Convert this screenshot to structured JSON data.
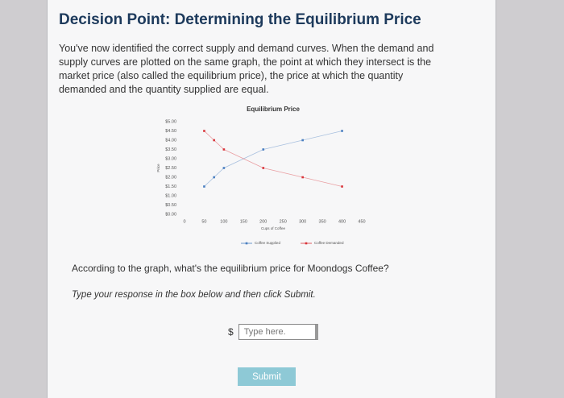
{
  "header": {
    "title": "Decision Point: Determining the Equilibrium Price"
  },
  "intro": "You've now identified the correct supply and demand curves. When the demand and supply curves are plotted on the same graph, the point at which they intersect is the market price (also called the equilibrium price), the price at which the quantity demanded and the quantity supplied are equal.",
  "chart_data": {
    "type": "line",
    "title": "Equilibrium Price",
    "x_label": "Cups of Coffee",
    "y_label": "Price",
    "x": [
      50,
      75,
      100,
      200,
      300,
      400
    ],
    "series": [
      {
        "name": "Coffee Supplied",
        "color": "#4a7fc1",
        "values": [
          1.5,
          2.0,
          2.5,
          3.5,
          4.0,
          4.5
        ]
      },
      {
        "name": "Coffee Demanded",
        "color": "#d9343a",
        "values": [
          4.5,
          4.0,
          3.5,
          2.5,
          2.0,
          1.5
        ]
      }
    ],
    "xlim": [
      0,
      450
    ],
    "xticks": [
      0,
      50,
      100,
      150,
      200,
      250,
      300,
      350,
      400,
      450
    ],
    "ylim": [
      0,
      5
    ],
    "yticks": [
      {
        "value": 0,
        "label": "$0.00"
      },
      {
        "value": 0.5,
        "label": "$0.50"
      },
      {
        "value": 1,
        "label": "$1.00"
      },
      {
        "value": 1.5,
        "label": "$1.50"
      },
      {
        "value": 2,
        "label": "$2.00"
      },
      {
        "value": 2.5,
        "label": "$2.50"
      },
      {
        "value": 3,
        "label": "$3.00"
      },
      {
        "value": 3.5,
        "label": "$3.50"
      },
      {
        "value": 4,
        "label": "$4.00"
      },
      {
        "value": 4.5,
        "label": "$4.50"
      },
      {
        "value": 5,
        "label": "$5.00"
      }
    ],
    "grid": false,
    "legend": "bottom"
  },
  "question": "According to the graph, what's the equilibrium price for Moondogs Coffee?",
  "instruction": "Type your response in the box below and then click Submit.",
  "answer": {
    "prefix": "$",
    "placeholder": "Type here."
  },
  "button": "Submit"
}
